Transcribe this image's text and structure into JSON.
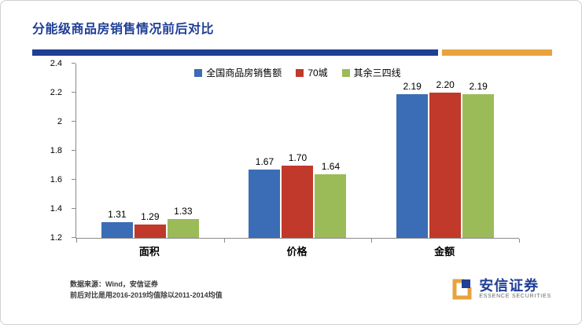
{
  "page": {
    "title": "分能级商品房销售情况前后对比"
  },
  "chart_data": {
    "type": "bar",
    "title": "",
    "categories": [
      "面积",
      "价格",
      "金额"
    ],
    "series": [
      {
        "name": "全国商品房销售额",
        "color": "#3A6DB5",
        "values": [
          1.31,
          1.67,
          2.19
        ]
      },
      {
        "name": "70城",
        "color": "#C0392B",
        "values": [
          1.29,
          1.7,
          2.2
        ]
      },
      {
        "name": "其余三四线",
        "color": "#9BBB59",
        "values": [
          1.33,
          1.64,
          2.19
        ]
      }
    ],
    "ylim": [
      1.2,
      2.4
    ],
    "yticks": [
      1.2,
      1.4,
      1.6,
      1.8,
      2,
      2.2,
      2.4
    ],
    "xlabel": "",
    "ylabel": "",
    "grid": false,
    "legend_position": "top"
  },
  "footer": {
    "source_line1": "数据来源：Wind，安信证券",
    "source_line2": "前后对比是用2016-2019均值除以2011-2014均值"
  },
  "branding": {
    "name_cn": "安信证券",
    "name_en": "ESSENCE SECURITIES"
  },
  "colors": {
    "accent_blue": "#1F3E96",
    "accent_orange": "#E8A33E",
    "axis": "#8a8a8a"
  }
}
